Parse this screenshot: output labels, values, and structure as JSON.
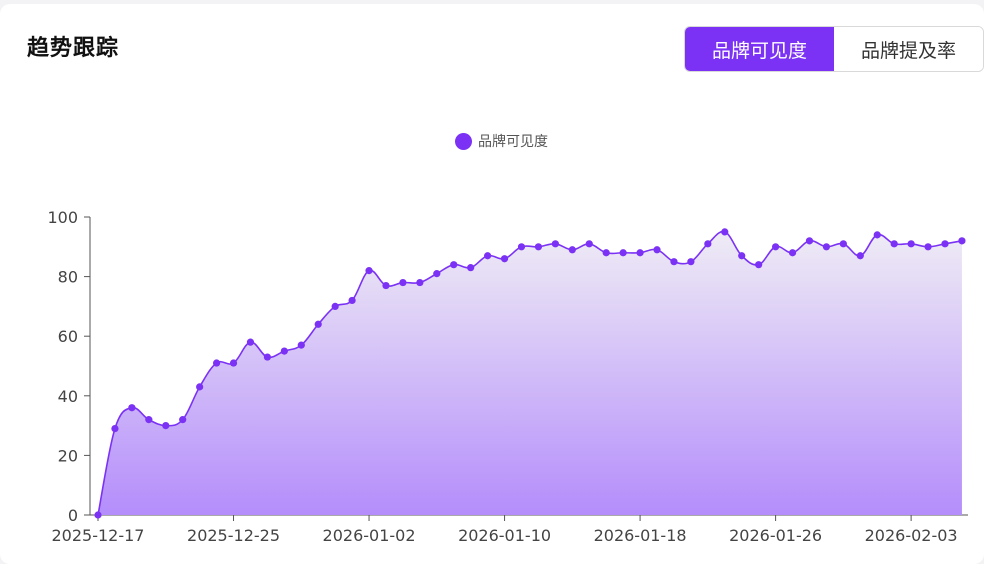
{
  "card": {
    "title": "趋势跟踪",
    "tabs": [
      {
        "label": "品牌可见度",
        "active": true
      },
      {
        "label": "品牌提及率",
        "active": false
      }
    ]
  },
  "colors": {
    "accent": "#7b32f5",
    "line": "#7b32f5",
    "area_top": "#efecf5",
    "area_bottom": "#b48dfb"
  },
  "chart_data": {
    "type": "area",
    "legend": [
      "品牌可见度"
    ],
    "legend_position": "top-center",
    "grid": false,
    "ylim": [
      0,
      100
    ],
    "y_ticks": [
      0,
      20,
      40,
      60,
      80,
      100
    ],
    "x_tick_labels": [
      "2025-12-17",
      "2025-12-25",
      "2026-01-02",
      "2026-01-10",
      "2026-01-18",
      "2026-01-26",
      "2026-02-03"
    ],
    "x_start": "2025-12-17",
    "x_end": "2026-02-06",
    "series": [
      {
        "name": "品牌可见度",
        "values": [
          0,
          29,
          36,
          32,
          30,
          32,
          43,
          51,
          51,
          58,
          53,
          55,
          57,
          64,
          70,
          72,
          82,
          77,
          78,
          78,
          81,
          84,
          83,
          87,
          86,
          90,
          90,
          91,
          89,
          91,
          88,
          88,
          88,
          89,
          85,
          85,
          91,
          95,
          87,
          84,
          90,
          88,
          92,
          90,
          91,
          87,
          94,
          91,
          91,
          90,
          91,
          92
        ]
      }
    ]
  }
}
